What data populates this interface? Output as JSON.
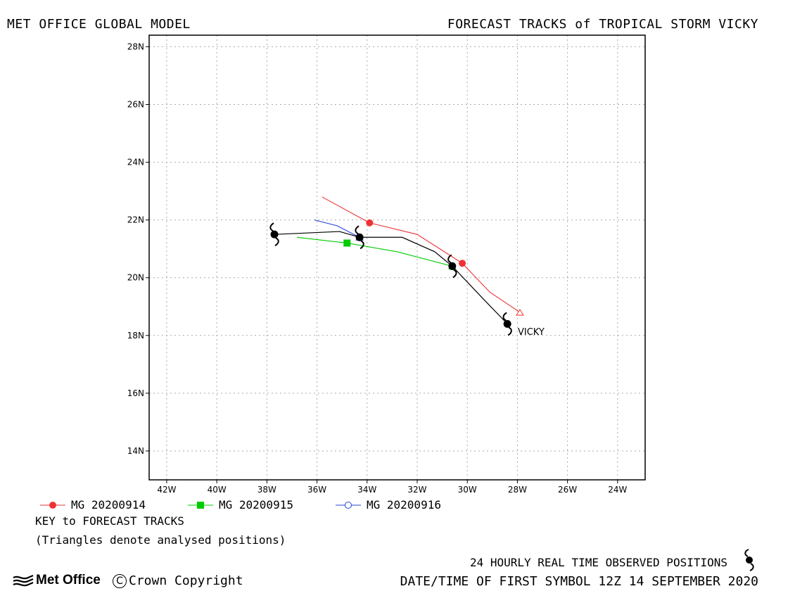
{
  "header": {
    "left_title": "MET OFFICE GLOBAL MODEL",
    "right_title": "FORECAST TRACKS of TROPICAL STORM VICKY"
  },
  "map": {
    "lon_ticks": [
      "42W",
      "40W",
      "38W",
      "36W",
      "34W",
      "32W",
      "30W",
      "28W",
      "26W",
      "24W"
    ],
    "lat_ticks": [
      "28N",
      "26N",
      "24N",
      "22N",
      "20N",
      "18N",
      "16N",
      "14N"
    ],
    "lon_range_deg_w": [
      42.7,
      22.9
    ],
    "lat_range_deg_n": [
      13.0,
      28.4
    ],
    "grid": "dotted",
    "storm_label": "VICKY",
    "observed_positions": [
      {
        "lon_w": 28.4,
        "lat_n": 18.4
      },
      {
        "lon_w": 30.6,
        "lat_n": 20.4
      },
      {
        "lon_w": 34.3,
        "lat_n": 21.4
      },
      {
        "lon_w": 37.7,
        "lat_n": 21.5
      }
    ],
    "observed_track": [
      {
        "lon_w": 28.4,
        "lat_n": 18.4
      },
      {
        "lon_w": 29.4,
        "lat_n": 19.3
      },
      {
        "lon_w": 30.6,
        "lat_n": 20.4
      },
      {
        "lon_w": 31.3,
        "lat_n": 20.9
      },
      {
        "lon_w": 32.6,
        "lat_n": 21.4
      },
      {
        "lon_w": 34.3,
        "lat_n": 21.4
      },
      {
        "lon_w": 35.1,
        "lat_n": 21.6
      },
      {
        "lon_w": 37.7,
        "lat_n": 21.5
      }
    ],
    "forecast_tracks": [
      {
        "name": "MG 20200914",
        "color": "#ee3333",
        "marker": "circle",
        "analysed": {
          "lon_w": 27.9,
          "lat_n": 18.8
        },
        "points": [
          {
            "lon_w": 27.9,
            "lat_n": 18.8
          },
          {
            "lon_w": 29.1,
            "lat_n": 19.5
          },
          {
            "lon_w": 30.2,
            "lat_n": 20.5
          },
          {
            "lon_w": 32.0,
            "lat_n": 21.5
          },
          {
            "lon_w": 33.9,
            "lat_n": 21.9
          },
          {
            "lon_w": 35.8,
            "lat_n": 22.8
          }
        ],
        "markers": [
          {
            "lon_w": 30.2,
            "lat_n": 20.5
          },
          {
            "lon_w": 33.9,
            "lat_n": 21.9
          }
        ]
      },
      {
        "name": "MG 20200915",
        "color": "#00cc00",
        "marker": "square",
        "analysed": {
          "lon_w": 30.6,
          "lat_n": 20.4
        },
        "points": [
          {
            "lon_w": 30.6,
            "lat_n": 20.4
          },
          {
            "lon_w": 32.8,
            "lat_n": 20.9
          },
          {
            "lon_w": 34.8,
            "lat_n": 21.2
          },
          {
            "lon_w": 36.8,
            "lat_n": 21.4
          }
        ],
        "markers": [
          {
            "lon_w": 34.8,
            "lat_n": 21.2
          }
        ]
      },
      {
        "name": "MG 20200916",
        "color": "#2244dd",
        "marker": "open-circle",
        "analysed": {
          "lon_w": 34.3,
          "lat_n": 21.4
        },
        "points": [
          {
            "lon_w": 34.3,
            "lat_n": 21.4
          },
          {
            "lon_w": 35.2,
            "lat_n": 21.8
          },
          {
            "lon_w": 36.1,
            "lat_n": 22.0
          }
        ],
        "markers": []
      }
    ]
  },
  "legend": {
    "items": [
      {
        "label": "MG 20200914",
        "color": "#ee3333",
        "marker": "circle"
      },
      {
        "label": "MG 20200915",
        "color": "#00cc00",
        "marker": "square"
      },
      {
        "label": "MG 20200916",
        "color": "#2244dd",
        "marker": "open-circle"
      }
    ],
    "key_title": "KEY to FORECAST TRACKS",
    "key_note": "(Triangles denote analysed positions)"
  },
  "footer": {
    "observed_label": "24 HOURLY REAL TIME OBSERVED POSITIONS",
    "observed_icon": "tropical-storm-symbol-icon",
    "date_line": "DATE/TIME OF FIRST SYMBOL 12Z 14 SEPTEMBER 2020",
    "logo_text": "Met Office",
    "copyright": "Crown Copyright"
  }
}
